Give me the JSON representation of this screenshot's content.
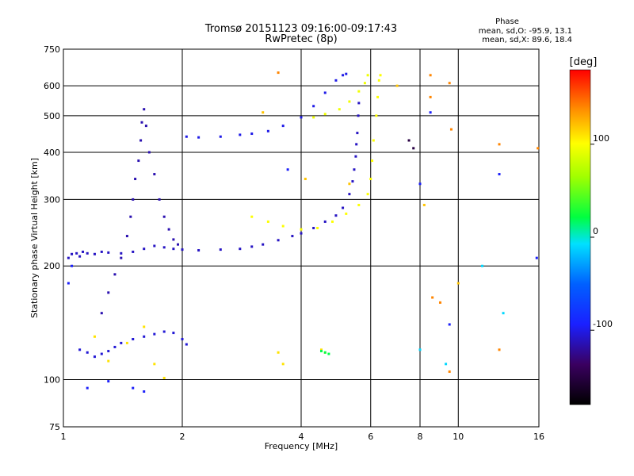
{
  "chart_data": {
    "type": "scatter",
    "title": "Tromsø 20151123 09:16:00-09:17:43",
    "subtitle": "RwPretec (8p)",
    "xlabel": "Frequency [MHz]",
    "ylabel": "Stationary phase Virtual Height [km]",
    "x_scale": "log",
    "y_scale": "log",
    "xlim": [
      1,
      16
    ],
    "ylim": [
      75,
      750
    ],
    "x_ticks": [
      1,
      2,
      4,
      6,
      8,
      10,
      16
    ],
    "x_tick_labels": [
      "1",
      "2",
      "4",
      "6",
      "8",
      "10",
      "16"
    ],
    "y_ticks": [
      75,
      100,
      200,
      300,
      400,
      500,
      600,
      750
    ],
    "y_tick_labels": [
      "75",
      "100",
      "200",
      "300",
      "400",
      "500",
      "600",
      "750"
    ],
    "grid": true,
    "stats": {
      "header": "Phase",
      "line_o": "mean, sd,O: -95.9, 13.1",
      "line_x": "mean, sd,X: 89.6, 18.4"
    },
    "colorbar": {
      "label": "[deg]",
      "range": [
        -180,
        180
      ],
      "ticks": [
        100,
        0,
        -100
      ],
      "tick_labels": [
        "100",
        "0",
        "-100"
      ]
    },
    "series": [
      {
        "phase": -110,
        "points": [
          [
            1.03,
            210
          ],
          [
            1.05,
            215
          ],
          [
            1.08,
            216
          ],
          [
            1.1,
            212
          ],
          [
            1.12,
            218
          ],
          [
            1.15,
            216
          ],
          [
            1.2,
            215
          ],
          [
            1.25,
            218
          ],
          [
            1.3,
            217
          ],
          [
            1.4,
            216
          ],
          [
            1.5,
            218
          ],
          [
            1.6,
            222
          ],
          [
            1.7,
            226
          ],
          [
            1.8,
            224
          ],
          [
            1.9,
            222
          ],
          [
            2.0,
            221
          ],
          [
            2.2,
            220
          ],
          [
            2.5,
            221
          ],
          [
            2.8,
            222
          ],
          [
            3.0,
            225
          ],
          [
            3.2,
            228
          ],
          [
            3.5,
            234
          ],
          [
            3.8,
            240
          ],
          [
            4.0,
            244
          ],
          [
            4.3,
            252
          ],
          [
            4.6,
            262
          ],
          [
            4.9,
            272
          ],
          [
            5.1,
            285
          ],
          [
            5.3,
            310
          ],
          [
            5.4,
            335
          ],
          [
            5.45,
            360
          ],
          [
            5.5,
            390
          ],
          [
            5.52,
            420
          ],
          [
            5.55,
            450
          ],
          [
            5.58,
            500
          ],
          [
            5.6,
            540
          ]
        ]
      },
      {
        "phase": -115,
        "points": [
          [
            1.25,
            150
          ],
          [
            1.3,
            170
          ],
          [
            1.35,
            190
          ],
          [
            1.4,
            210
          ],
          [
            1.45,
            240
          ],
          [
            1.48,
            270
          ],
          [
            1.5,
            300
          ],
          [
            1.52,
            340
          ],
          [
            1.55,
            380
          ],
          [
            1.57,
            430
          ],
          [
            1.58,
            480
          ],
          [
            1.6,
            520
          ],
          [
            1.62,
            470
          ],
          [
            1.65,
            400
          ],
          [
            1.7,
            350
          ],
          [
            1.75,
            300
          ],
          [
            1.8,
            270
          ],
          [
            1.85,
            250
          ],
          [
            1.9,
            235
          ],
          [
            1.95,
            228
          ]
        ]
      },
      {
        "phase": -105,
        "points": [
          [
            1.1,
            120
          ],
          [
            1.15,
            118
          ],
          [
            1.2,
            115
          ],
          [
            1.25,
            117
          ],
          [
            1.3,
            119
          ],
          [
            1.35,
            122
          ],
          [
            1.4,
            125
          ],
          [
            1.5,
            128
          ],
          [
            1.6,
            130
          ],
          [
            1.7,
            132
          ],
          [
            1.8,
            134
          ],
          [
            1.9,
            133
          ],
          [
            2.0,
            128
          ],
          [
            2.05,
            124
          ]
        ]
      },
      {
        "phase": -100,
        "points": [
          [
            2.05,
            440
          ],
          [
            2.2,
            438
          ],
          [
            2.5,
            440
          ],
          [
            2.8,
            445
          ],
          [
            3.0,
            448
          ],
          [
            3.3,
            455
          ],
          [
            3.6,
            470
          ],
          [
            4.0,
            495
          ],
          [
            4.3,
            530
          ],
          [
            4.6,
            575
          ],
          [
            4.9,
            620
          ],
          [
            5.1,
            640
          ],
          [
            5.2,
            645
          ]
        ]
      },
      {
        "phase": 100,
        "points": [
          [
            3.0,
            270
          ],
          [
            3.3,
            262
          ],
          [
            3.6,
            255
          ],
          [
            4.0,
            250
          ],
          [
            4.4,
            252
          ],
          [
            4.8,
            262
          ],
          [
            5.2,
            275
          ],
          [
            5.6,
            290
          ],
          [
            5.9,
            310
          ],
          [
            6.0,
            340
          ],
          [
            6.05,
            380
          ],
          [
            6.1,
            430
          ],
          [
            6.2,
            500
          ],
          [
            6.25,
            560
          ],
          [
            6.3,
            620
          ],
          [
            6.35,
            640
          ]
        ]
      },
      {
        "phase": 95,
        "points": [
          [
            4.3,
            495
          ],
          [
            4.6,
            505
          ],
          [
            5.0,
            520
          ],
          [
            5.3,
            545
          ],
          [
            5.6,
            580
          ],
          [
            5.8,
            610
          ],
          [
            5.9,
            640
          ]
        ]
      },
      {
        "phase": 110,
        "points": [
          [
            1.2,
            130
          ],
          [
            1.3,
            112
          ],
          [
            1.45,
            125
          ],
          [
            1.6,
            138
          ],
          [
            1.7,
            110
          ],
          [
            1.8,
            101
          ],
          [
            3.5,
            118
          ],
          [
            3.6,
            110
          ],
          [
            4.5,
            120
          ],
          [
            4.6,
            118
          ]
        ]
      },
      {
        "phase": 20,
        "points": [
          [
            4.5,
            119
          ],
          [
            4.6,
            118
          ],
          [
            4.7,
            117
          ]
        ]
      },
      {
        "phase": -150,
        "points": [
          [
            7.5,
            430
          ],
          [
            7.7,
            410
          ]
        ]
      },
      {
        "phase": 140,
        "points": [
          [
            3.5,
            650
          ],
          [
            8.5,
            640
          ],
          [
            9.5,
            610
          ],
          [
            9.6,
            460
          ],
          [
            12.7,
            420
          ],
          [
            15.9,
            410
          ],
          [
            8.6,
            165
          ],
          [
            9.5,
            105
          ],
          [
            12.7,
            120
          ],
          [
            8.5,
            560
          ],
          [
            9.0,
            160
          ]
        ]
      },
      {
        "phase": 120,
        "points": [
          [
            3.2,
            510
          ],
          [
            4.1,
            340
          ],
          [
            5.3,
            330
          ],
          [
            7.0,
            600
          ],
          [
            8.2,
            290
          ],
          [
            10.0,
            180
          ]
        ]
      },
      {
        "phase": -95,
        "points": [
          [
            3.7,
            360
          ],
          [
            8.0,
            330
          ],
          [
            8.5,
            510
          ],
          [
            9.5,
            140
          ],
          [
            12.7,
            350
          ],
          [
            15.8,
            210
          ],
          [
            1.03,
            180
          ],
          [
            1.05,
            200
          ],
          [
            1.15,
            95
          ],
          [
            1.3,
            99
          ],
          [
            1.5,
            95
          ],
          [
            1.6,
            93
          ]
        ]
      },
      {
        "phase": -10,
        "points": [
          [
            8.0,
            120
          ],
          [
            9.3,
            110
          ],
          [
            11.5,
            200
          ],
          [
            13.0,
            150
          ]
        ]
      }
    ]
  }
}
